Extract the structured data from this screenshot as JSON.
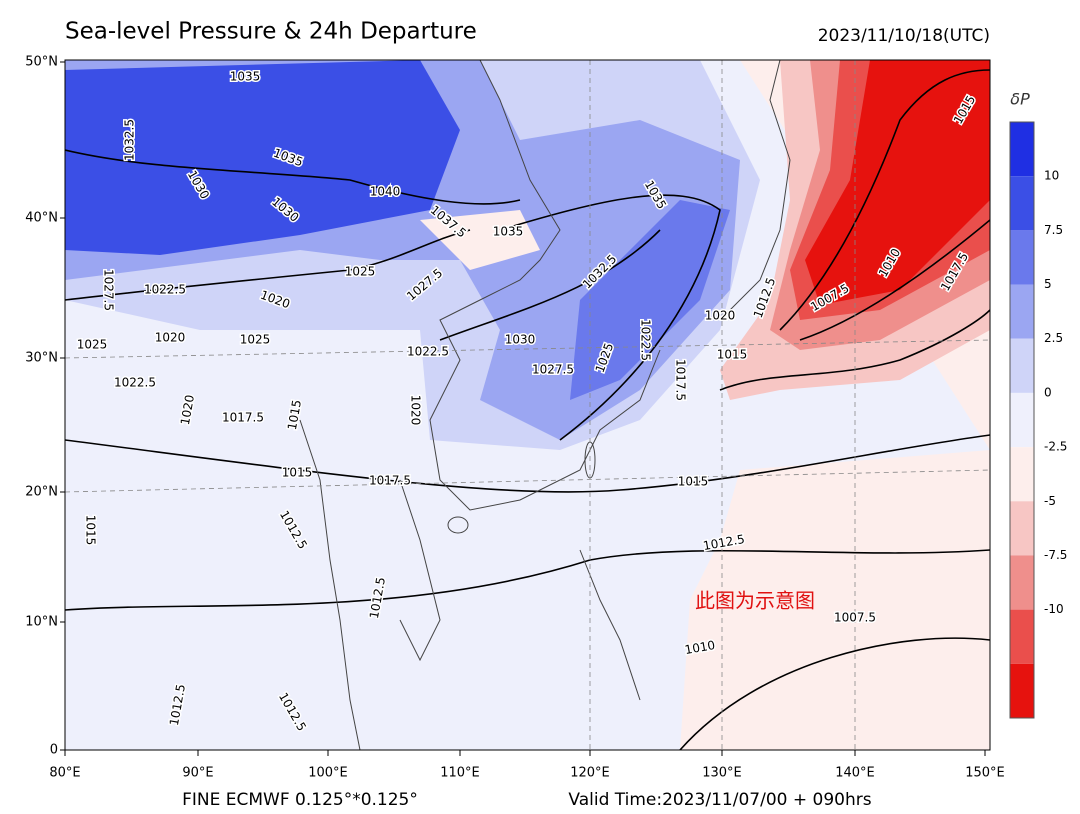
{
  "header": {
    "title": "Sea-level Pressure & 24h Departure",
    "timestamp": "2023/11/10/18(UTC)"
  },
  "map": {
    "lat_labels": [
      "50°N",
      "40°N",
      "30°N",
      "20°N",
      "10°N",
      "0"
    ],
    "lon_labels": [
      "80°E",
      "90°E",
      "100°E",
      "110°E",
      "120°E",
      "130°E",
      "140°E",
      "150°E"
    ],
    "contour_labels": [
      "1035",
      "1032.5",
      "1035",
      "1030",
      "1040",
      "1030",
      "1037.5",
      "1035",
      "1025",
      "1027.5",
      "1027.5",
      "1022.5",
      "1020",
      "1020",
      "1025",
      "1030",
      "1032.5",
      "1022.5",
      "1025",
      "1027.5",
      "1025",
      "1022.5",
      "1017.5",
      "1020",
      "1015",
      "1012.5",
      "1007.5",
      "1010",
      "1017.5",
      "1015",
      "1035",
      "1022.5",
      "1020",
      "1017.5",
      "1015",
      "1020",
      "1015",
      "1017.5",
      "1015",
      "1012.5",
      "1012.5",
      "1015",
      "1012.5",
      "1007.5",
      "1010",
      "1012.5",
      "1012.5"
    ],
    "watermark": "此图为示意图"
  },
  "colorbar": {
    "label": "δP",
    "ticks": [
      "10",
      "7.5",
      "5",
      "2.5",
      "0",
      "-2.5",
      "-5",
      "-7.5",
      "-10"
    ],
    "colors": [
      "#1f2fe3",
      "#3b4fe6",
      "#6a79ec",
      "#9ba6f2",
      "#cfd4f8",
      "#eff0fc",
      "#fdeeec",
      "#f7c6c4",
      "#ef8f8c",
      "#ea4f4c",
      "#e6120e"
    ]
  },
  "footer": {
    "resolution": "FINE ECMWF 0.125°*0.125°",
    "valid_time": "Valid Time:2023/11/07/00 + 090hrs"
  }
}
